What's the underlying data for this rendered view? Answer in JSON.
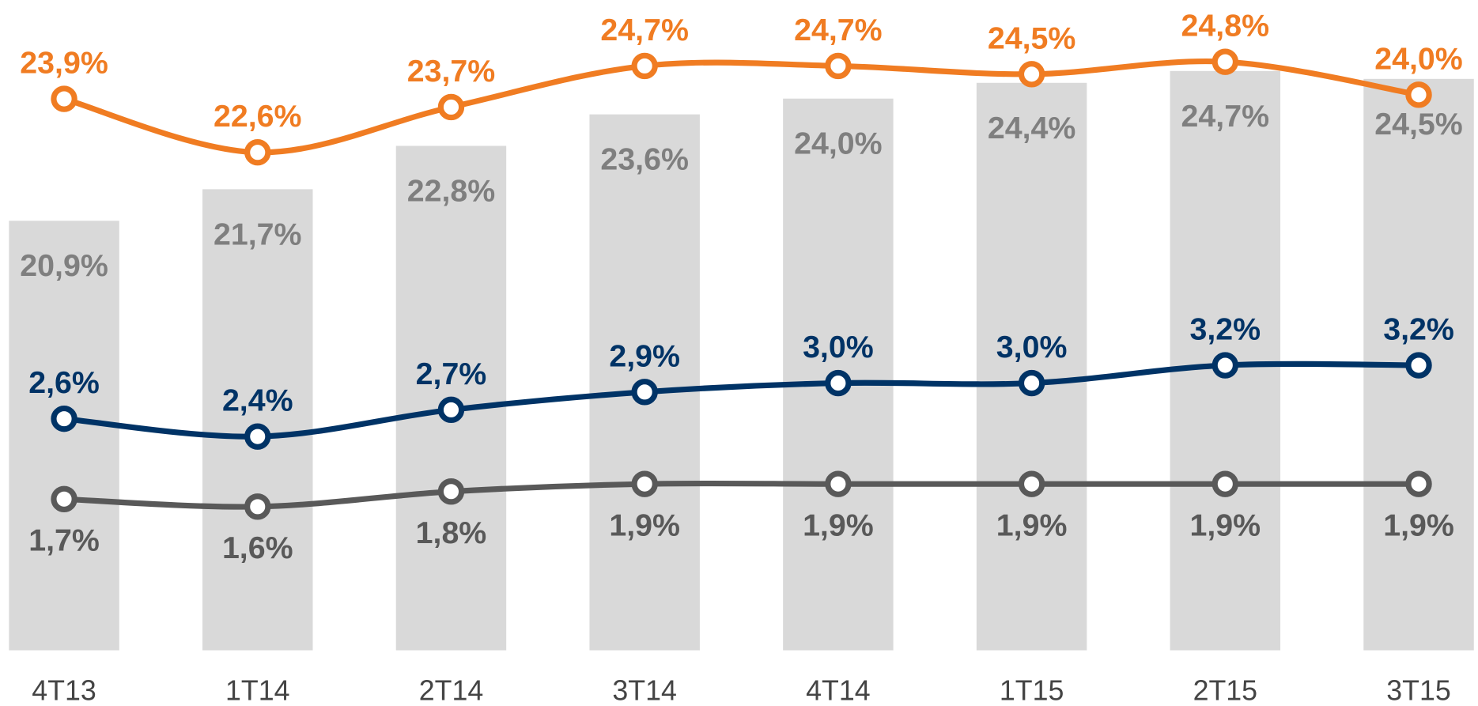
{
  "chart_data": {
    "type": "combo",
    "categories": [
      "4T13",
      "1T14",
      "2T14",
      "3T14",
      "4T14",
      "1T15",
      "2T15",
      "3T15"
    ],
    "series": [
      {
        "type": "bar",
        "color": "#d9d9d9",
        "label_color": "#7f7f7f",
        "label_position": "inside-top",
        "ylim": [
          10,
          26.5
        ],
        "values": [
          20.9,
          21.7,
          22.8,
          23.6,
          24.0,
          24.4,
          24.7,
          24.5
        ],
        "value_labels": [
          "20,9%",
          "21,7%",
          "22,8%",
          "23,6%",
          "24,0%",
          "24,4%",
          "24,7%",
          "24,5%"
        ]
      },
      {
        "type": "line",
        "color": "#f07c22",
        "label_color": "#f07c22",
        "label_position": "above",
        "ylim": [
          10.5,
          26.3
        ],
        "values": [
          23.9,
          22.6,
          23.7,
          24.7,
          24.7,
          24.5,
          24.8,
          24.0
        ],
        "value_labels": [
          "23,9%",
          "22,6%",
          "23,7%",
          "24,7%",
          "24,7%",
          "24,5%",
          "24,8%",
          "24,0%"
        ]
      },
      {
        "type": "line",
        "color": "#003366",
        "label_color": "#003366",
        "label_position": "above",
        "ylim": [
          0,
          7.3
        ],
        "values": [
          2.6,
          2.4,
          2.7,
          2.9,
          3.0,
          3.0,
          3.2,
          3.2
        ],
        "value_labels": [
          "2,6%",
          "2,4%",
          "2,7%",
          "2,9%",
          "3,0%",
          "3,0%",
          "3,2%",
          "3,2%"
        ]
      },
      {
        "type": "line",
        "color": "#595959",
        "label_color": "#595959",
        "label_position": "below",
        "ylim": [
          -0.3,
          8.3
        ],
        "values": [
          1.7,
          1.6,
          1.8,
          1.9,
          1.9,
          1.9,
          1.9,
          1.9
        ],
        "value_labels": [
          "1,7%",
          "1,6%",
          "1,8%",
          "1,9%",
          "1,9%",
          "1,9%",
          "1,9%",
          "1,9%"
        ]
      }
    ]
  }
}
